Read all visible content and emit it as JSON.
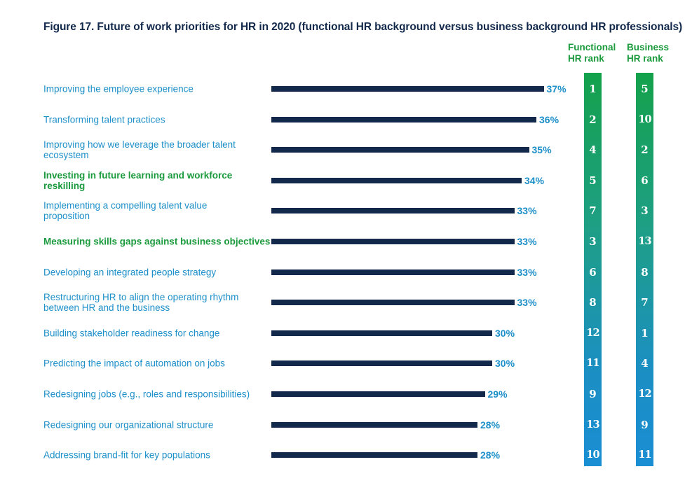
{
  "title": "Figure 17. Future of work priorities for HR in 2020 (functional HR background versus business background HR professionals)",
  "headers": {
    "functional": "Functional HR rank",
    "business": "Business HR rank"
  },
  "colors": {
    "bar": "#13294b",
    "label": "#1d8fc9",
    "highlight": "#1a9a3c",
    "rank_column_top": "#14a14b",
    "rank_column_bottom": "#1a8ed3"
  },
  "chart_data": {
    "type": "bar",
    "orientation": "horizontal",
    "value_unit": "%",
    "categories": [
      "Improving the employee experience",
      "Transforming talent practices",
      "Improving how we leverage the broader talent ecosystem",
      "Investing in future learning and workforce reskilling",
      "Implementing a compelling talent value proposition",
      "Measuring skills gaps against business objectives",
      "Developing an integrated people strategy",
      "Restructuring HR to align the operating rhythm between HR and the business",
      "Building stakeholder readiness for change",
      "Predicting the impact of automation on jobs",
      "Redesigning jobs (e.g., roles and responsibilities)",
      "Redesigning our organizational structure",
      "Addressing brand-fit for key populations"
    ],
    "values": [
      37,
      36,
      35,
      34,
      33,
      33,
      33,
      33,
      30,
      30,
      29,
      28,
      28
    ],
    "value_labels": [
      "37%",
      "36%",
      "35%",
      "34%",
      "33%",
      "33%",
      "33%",
      "33%",
      "30%",
      "30%",
      "29%",
      "28%",
      "28%"
    ],
    "highlighted": [
      false,
      false,
      false,
      true,
      false,
      true,
      false,
      false,
      false,
      false,
      false,
      false,
      false
    ],
    "functional_rank": [
      "1",
      "2",
      "4",
      "5",
      "7",
      "3",
      "6",
      "8",
      "12",
      "11",
      "9",
      "13",
      "10"
    ],
    "business_rank": [
      "5",
      "10",
      "2",
      "6",
      "3",
      "13",
      "8",
      "7",
      "1",
      "4",
      "12",
      "9",
      "11"
    ]
  }
}
